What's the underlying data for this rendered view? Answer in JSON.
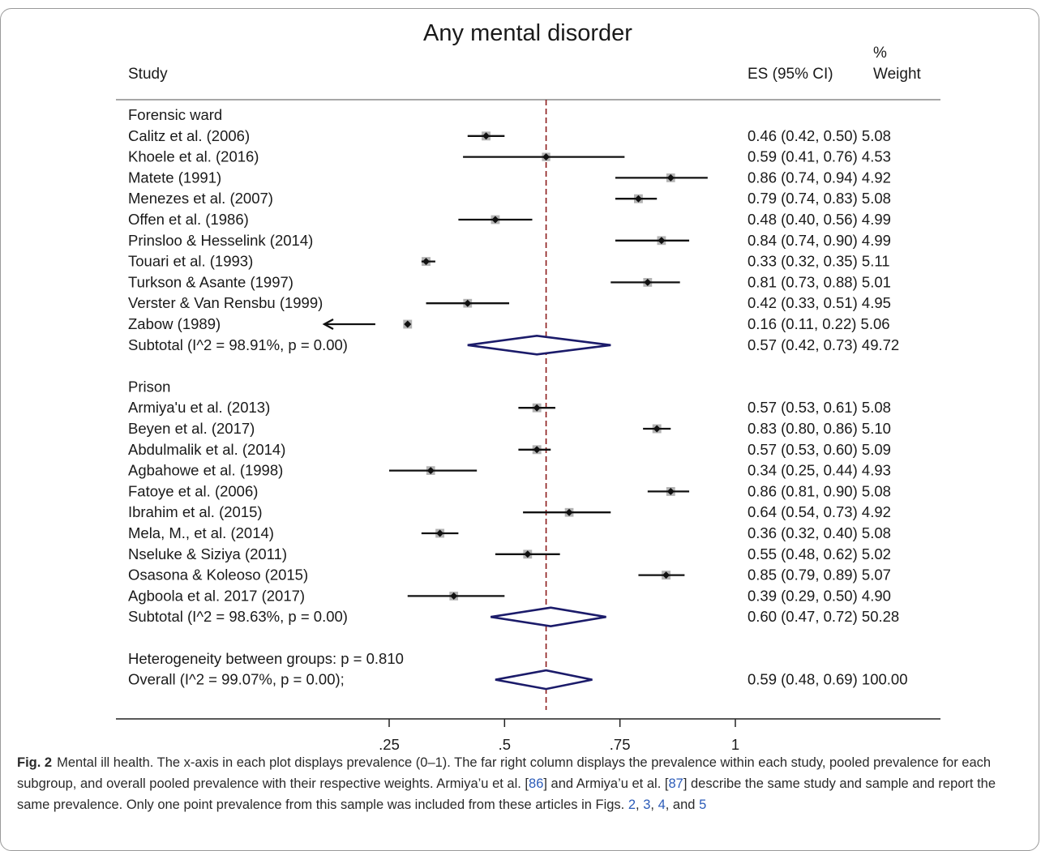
{
  "chart_data": {
    "type": "forest",
    "title": "Any mental disorder",
    "columns": {
      "study": "Study",
      "es": "ES (95% CI)",
      "weight_top": "%",
      "weight_bottom": "Weight"
    },
    "xlim": [
      0.16,
      1.0
    ],
    "ticks": [
      {
        "value": 0.25,
        "label": ".25"
      },
      {
        "value": 0.5,
        "label": ".5"
      },
      {
        "value": 0.75,
        "label": ".75"
      },
      {
        "value": 1.0,
        "label": "1"
      }
    ],
    "reference_line": 0.59,
    "groups": [
      {
        "name": "Forensic ward",
        "studies": [
          {
            "label": "Calitz et al.  (2006)",
            "es": 0.46,
            "lo": 0.42,
            "hi": 0.5,
            "weight": 5.08,
            "text": "0.46 (0.42, 0.50) 5.08"
          },
          {
            "label": "Khoele et al.  (2016)",
            "es": 0.59,
            "lo": 0.41,
            "hi": 0.76,
            "weight": 4.53,
            "text": "0.59 (0.41, 0.76) 4.53"
          },
          {
            "label": "Matete  (1991)",
            "es": 0.86,
            "lo": 0.74,
            "hi": 0.94,
            "weight": 4.92,
            "text": "0.86 (0.74, 0.94) 4.92"
          },
          {
            "label": "Menezes et al.  (2007)",
            "es": 0.79,
            "lo": 0.74,
            "hi": 0.83,
            "weight": 5.08,
            "text": "0.79 (0.74, 0.83) 5.08"
          },
          {
            "label": "Offen et al.  (1986)",
            "es": 0.48,
            "lo": 0.4,
            "hi": 0.56,
            "weight": 4.99,
            "text": "0.48 (0.40, 0.56) 4.99"
          },
          {
            "label": "Prinsloo & Hesselink (2014)",
            "es": 0.84,
            "lo": 0.74,
            "hi": 0.9,
            "weight": 4.99,
            "text": "0.84 (0.74, 0.90) 4.99"
          },
          {
            "label": "Touari et al.  (1993)",
            "es": 0.33,
            "lo": 0.32,
            "hi": 0.35,
            "weight": 5.11,
            "text": "0.33 (0.32, 0.35) 5.11"
          },
          {
            "label": "Turkson & Asante  (1997)",
            "es": 0.81,
            "lo": 0.73,
            "hi": 0.88,
            "weight": 5.01,
            "text": "0.81 (0.73, 0.88) 5.01"
          },
          {
            "label": "Verster & Van Rensbu (1999)",
            "es": 0.42,
            "lo": 0.33,
            "hi": 0.51,
            "weight": 4.95,
            "text": "0.42 (0.33, 0.51) 4.95"
          },
          {
            "label": "Zabow  (1989)",
            "es": 0.16,
            "lo": 0.11,
            "hi": 0.22,
            "weight": 5.06,
            "text": "0.16 (0.11, 0.22) 5.06",
            "clipped_left": true
          }
        ],
        "subtotal": {
          "label": "Subtotal  (I^2 = 98.91%, p = 0.00)",
          "es": 0.57,
          "lo": 0.42,
          "hi": 0.73,
          "weight": 49.72,
          "text": "0.57 (0.42, 0.73) 49.72"
        }
      },
      {
        "name": "Prison",
        "studies": [
          {
            "label": "Armiya'u et al.  (2013)",
            "es": 0.57,
            "lo": 0.53,
            "hi": 0.61,
            "weight": 5.08,
            "text": "0.57 (0.53, 0.61) 5.08"
          },
          {
            "label": "Beyen et al.  (2017)",
            "es": 0.83,
            "lo": 0.8,
            "hi": 0.86,
            "weight": 5.1,
            "text": "0.83 (0.80, 0.86) 5.10"
          },
          {
            "label": "Abdulmalik et al.  (2014)",
            "es": 0.57,
            "lo": 0.53,
            "hi": 0.6,
            "weight": 5.09,
            "text": "0.57 (0.53, 0.60) 5.09"
          },
          {
            "label": "Agbahowe et al.  (1998)",
            "es": 0.34,
            "lo": 0.25,
            "hi": 0.44,
            "weight": 4.93,
            "text": "0.34 (0.25, 0.44) 4.93"
          },
          {
            "label": "Fatoye et al.  (2006)",
            "es": 0.86,
            "lo": 0.81,
            "hi": 0.9,
            "weight": 5.08,
            "text": "0.86 (0.81, 0.90) 5.08"
          },
          {
            "label": "Ibrahim et al.  (2015)",
            "es": 0.64,
            "lo": 0.54,
            "hi": 0.73,
            "weight": 4.92,
            "text": "0.64 (0.54, 0.73) 4.92"
          },
          {
            "label": "Mela, M., et al.  (2014)",
            "es": 0.36,
            "lo": 0.32,
            "hi": 0.4,
            "weight": 5.08,
            "text": "0.36 (0.32, 0.40) 5.08"
          },
          {
            "label": "Nseluke & Siziya  (2011)",
            "es": 0.55,
            "lo": 0.48,
            "hi": 0.62,
            "weight": 5.02,
            "text": "0.55 (0.48, 0.62) 5.02"
          },
          {
            "label": "Osasona & Koleoso  (2015)",
            "es": 0.85,
            "lo": 0.79,
            "hi": 0.89,
            "weight": 5.07,
            "text": "0.85 (0.79, 0.89) 5.07"
          },
          {
            "label": "Agboola et al. 2017 (2017)",
            "es": 0.39,
            "lo": 0.29,
            "hi": 0.5,
            "weight": 4.9,
            "text": "0.39 (0.29, 0.50) 4.90"
          }
        ],
        "subtotal": {
          "label": "Subtotal  (I^2 = 98.63%, p = 0.00)",
          "es": 0.6,
          "lo": 0.47,
          "hi": 0.72,
          "weight": 50.28,
          "text": "0.60 (0.47, 0.72) 50.28"
        }
      }
    ],
    "heterogeneity": "Heterogeneity between groups: p = 0.810",
    "overall": {
      "label": "Overall  (I^2 = 99.07%, p = 0.00);",
      "es": 0.59,
      "lo": 0.48,
      "hi": 0.69,
      "weight": 100.0,
      "text": "0.59 (0.48, 0.69) 100.00"
    },
    "colors": {
      "diamond": "#1b1b6a",
      "marker": "#111111",
      "weight_box": "#b3b3b3",
      "ref_line": "#8b1a1a"
    }
  },
  "caption": {
    "label": "Fig. 2",
    "text": "Mental ill health. The x-axis in each plot displays prevalence (0–1). The far right column displays the prevalence within each study, pooled prevalence for each subgroup, and overall pooled prevalence with their respective weights. Armiya’u et al. [",
    "ref1": "86",
    "text2": "] and Armiya’u et al. [",
    "ref2": "87",
    "text3": "] describe the same study and sample and report the same prevalence. Only one point prevalence from this sample was included from these articles in Figs. ",
    "fig2": "2",
    "sep1": ", ",
    "fig3": "3",
    "sep2": ", ",
    "fig4": "4",
    "sep3": ", and ",
    "fig5": "5"
  }
}
